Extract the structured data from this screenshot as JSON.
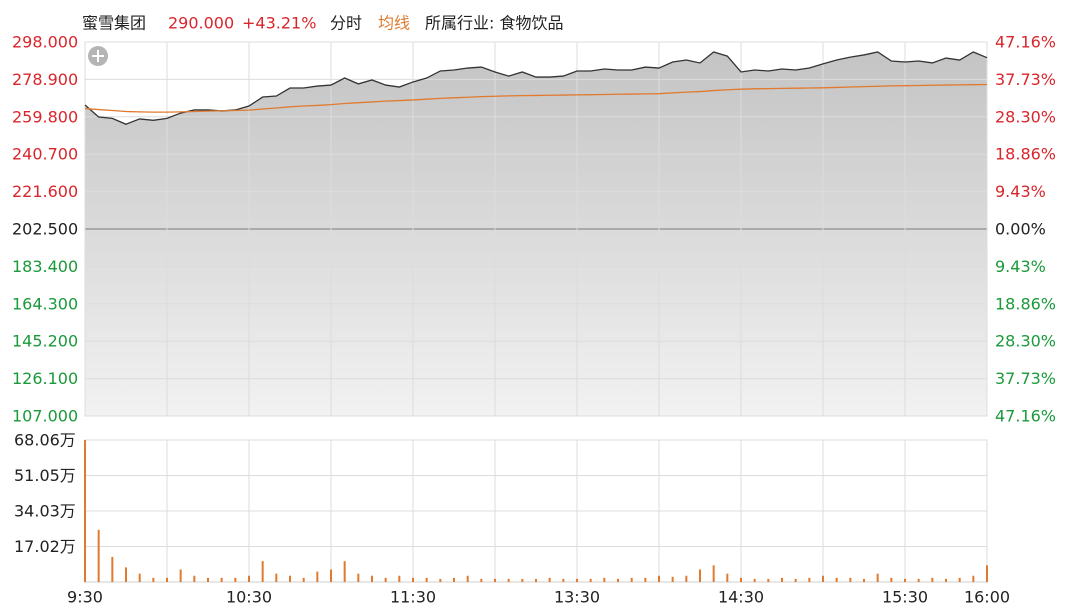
{
  "header": {
    "name": "蜜雪集团",
    "price": "290.000",
    "change": "+43.21%",
    "tab": "分时",
    "industry": "所属行业: 食物饮品"
  },
  "chart_data": {
    "type": "line",
    "up_color": "#d9262c",
    "down_color": "#1a9a3a",
    "grid": true,
    "x": [
      0,
      5,
      10,
      15,
      20,
      25,
      30,
      35,
      40,
      45,
      50,
      55,
      60,
      65,
      70,
      75,
      80,
      85,
      90,
      95,
      100,
      105,
      110,
      115,
      120,
      125,
      130,
      135,
      140,
      145,
      150,
      155,
      160,
      165,
      170,
      175,
      180,
      185,
      190,
      195,
      200,
      205,
      210,
      215,
      220,
      225,
      230,
      235,
      240,
      245,
      250,
      255,
      260,
      265,
      270,
      275,
      280,
      285,
      290,
      295,
      300,
      305,
      310,
      315,
      320,
      325,
      330
    ],
    "xlim": [
      0,
      330
    ],
    "xticks": [
      {
        "value": 0,
        "label": "9:30"
      },
      {
        "value": 30,
        "label": null
      },
      {
        "value": 60,
        "label": "10:30"
      },
      {
        "value": 90,
        "label": null
      },
      {
        "value": 120,
        "label": "11:30"
      },
      {
        "value": 150,
        "label": null
      },
      {
        "value": 180,
        "label": "13:30"
      },
      {
        "value": 210,
        "label": null
      },
      {
        "value": 240,
        "label": "14:30"
      },
      {
        "value": 270,
        "label": null
      },
      {
        "value": 300,
        "label": "15:30"
      },
      {
        "value": 330,
        "label": "16:00"
      }
    ],
    "ylim": [
      107,
      298
    ],
    "yticks": [
      {
        "value": 298,
        "label": "298.000"
      },
      {
        "value": 278.9,
        "label": "278.900"
      },
      {
        "value": 259.8,
        "label": "259.800"
      },
      {
        "value": 240.7,
        "label": "240.700"
      },
      {
        "value": 221.6,
        "label": "221.600"
      },
      {
        "value": 202.5,
        "label": "202.500"
      },
      {
        "value": 183.4,
        "label": "183.400"
      },
      {
        "value": 164.3,
        "label": "164.300"
      },
      {
        "value": 145.2,
        "label": "145.200"
      },
      {
        "value": 126.1,
        "label": "126.100"
      },
      {
        "value": 107,
        "label": "107.000"
      }
    ],
    "y2lim": [
      -47.16,
      47.16
    ],
    "y2ticks": [
      {
        "value": 47.16,
        "label": "47.16%"
      },
      {
        "value": 37.73,
        "label": "37.73%"
      },
      {
        "value": 28.3,
        "label": "28.30%"
      },
      {
        "value": 18.86,
        "label": "18.86%"
      },
      {
        "value": 9.43,
        "label": "9.43%"
      },
      {
        "value": 0,
        "label": "0.00%"
      },
      {
        "value": -9.43,
        "label": "9.43%"
      },
      {
        "value": -18.86,
        "label": "18.86%"
      },
      {
        "value": -28.3,
        "label": "28.30%"
      },
      {
        "value": -37.73,
        "label": "37.73%"
      },
      {
        "value": -47.16,
        "label": "47.16%"
      }
    ],
    "y3lim": [
      0,
      68.06
    ],
    "y3ticks": [
      {
        "value": 68.06,
        "label": "68.06万"
      },
      {
        "value": 51.05,
        "label": "51.05万"
      },
      {
        "value": 34.03,
        "label": "34.03万"
      },
      {
        "value": 17.02,
        "label": "17.02万"
      }
    ],
    "series": [
      {
        "color": "#333333",
        "values": [
          265.8,
          259.7,
          259,
          256,
          258.7,
          258,
          259,
          261.7,
          263.3,
          263.3,
          262.8,
          263.3,
          265.3,
          269.9,
          270.4,
          274.5,
          274.5,
          275.5,
          276,
          279.6,
          276.6,
          278.6,
          276,
          275,
          277.6,
          279.6,
          283.2,
          283.7,
          284.7,
          285.2,
          282.7,
          280.6,
          282.7,
          280.1,
          280.1,
          280.6,
          283.2,
          283.2,
          284.2,
          283.7,
          283.7,
          285.2,
          284.7,
          287.8,
          288.8,
          287.3,
          292.9,
          290.8,
          282.7,
          283.7,
          283.2,
          284.2,
          283.7,
          284.7,
          286.8,
          288.8,
          290.3,
          291.4,
          292.9,
          288.3,
          287.8,
          288.3,
          287.3,
          289.8,
          288.8,
          292.9,
          290
        ]
      },
      {
        "name": "均线",
        "color": "#e07a2f",
        "values": [
          264,
          263.5,
          263,
          262.5,
          262.3,
          262.2,
          262.2,
          262.3,
          262.5,
          262.7,
          262.9,
          263,
          263.2,
          263.8,
          264.3,
          264.9,
          265.3,
          265.6,
          266,
          266.6,
          267,
          267.4,
          267.8,
          268.1,
          268.4,
          268.8,
          269.2,
          269.5,
          269.8,
          270.1,
          270.3,
          270.5,
          270.6,
          270.7,
          270.8,
          270.9,
          271,
          271.1,
          271.2,
          271.3,
          271.4,
          271.5,
          271.6,
          272,
          272.4,
          272.7,
          273.2,
          273.6,
          273.9,
          274.1,
          274.2,
          274.3,
          274.4,
          274.5,
          274.6,
          274.8,
          275,
          275.2,
          275.4,
          275.6,
          275.7,
          275.8,
          275.9,
          276,
          276.1,
          276.2,
          276.3
        ]
      },
      {
        "type": "bar",
        "axis": "y3",
        "color": "#e07a2f",
        "values": [
          68.06,
          25,
          12,
          7,
          4,
          2,
          2,
          6,
          3,
          2,
          2,
          2,
          3,
          10,
          4,
          3,
          2,
          5,
          6,
          10,
          4,
          3,
          2,
          3,
          2,
          2,
          1.5,
          2,
          3,
          1.5,
          1.5,
          1.5,
          1.5,
          1.5,
          2,
          1.5,
          1.5,
          1.5,
          2,
          1.5,
          2,
          2,
          3,
          2.5,
          3,
          6,
          8,
          4,
          2,
          1.5,
          1.5,
          2,
          1.5,
          2,
          3,
          2,
          2,
          1.5,
          4,
          2,
          1.5,
          1.5,
          2,
          1.5,
          2,
          3,
          8
        ]
      }
    ]
  }
}
